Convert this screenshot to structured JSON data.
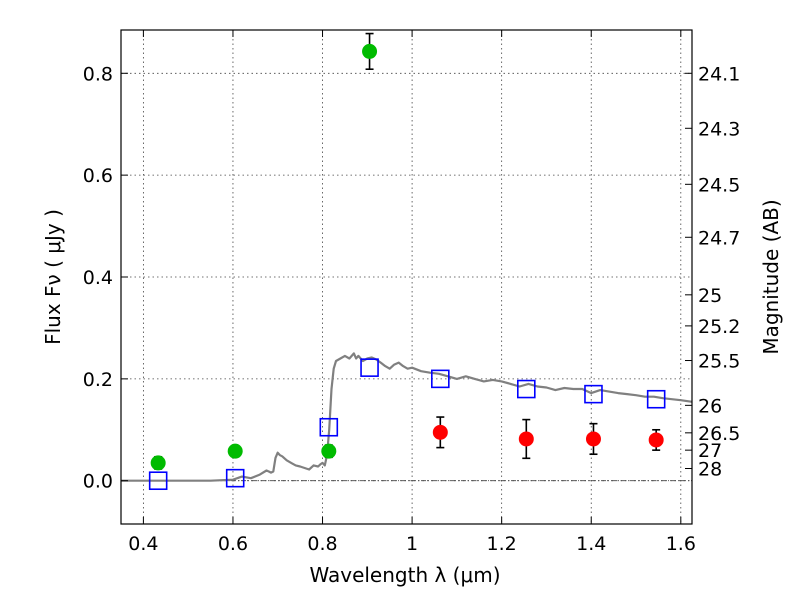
{
  "chart_data": {
    "type": "scatter",
    "xlabel": "Wavelength  λ (μm)",
    "ylabel": "Flux  Fν  ( μJy )",
    "ylabel_right": "Magnitude (AB)",
    "xlim": [
      0.35,
      1.625
    ],
    "ylim": [
      -0.085,
      0.885
    ],
    "grid": true,
    "x_ticks": [
      0.4,
      0.6,
      0.8,
      1.0,
      1.2,
      1.4,
      1.6
    ],
    "x_tick_labels": [
      "0.4",
      "0.6",
      "0.8",
      "1",
      "1.2",
      "1.4",
      "1.6"
    ],
    "y_ticks": [
      0.0,
      0.2,
      0.4,
      0.6,
      0.8
    ],
    "y_tick_labels": [
      "0.0",
      "0.2",
      "0.4",
      "0.6",
      "0.8"
    ],
    "right_ticks": [
      {
        "label": "24.1",
        "flux": 0.8
      },
      {
        "label": "24.3",
        "flux": 0.692
      },
      {
        "label": "24.5",
        "flux": 0.582
      },
      {
        "label": "24.7",
        "flux": 0.478
      },
      {
        "label": "25",
        "flux": 0.365
      },
      {
        "label": "25.2",
        "flux": 0.304
      },
      {
        "label": "25.5",
        "flux": 0.236
      },
      {
        "label": "26",
        "flux": 0.148
      },
      {
        "label": "26.5",
        "flux": 0.094
      },
      {
        "label": "27",
        "flux": 0.06
      },
      {
        "label": "28",
        "flux": 0.024
      }
    ],
    "series": [
      {
        "marker": "line",
        "color": "#808080",
        "x": [
          0.35,
          0.55,
          0.6,
          0.62,
          0.64,
          0.66,
          0.675,
          0.68,
          0.685,
          0.69,
          0.695,
          0.7,
          0.705,
          0.71,
          0.72,
          0.73,
          0.74,
          0.75,
          0.76,
          0.77,
          0.78,
          0.79,
          0.795,
          0.8,
          0.805,
          0.81,
          0.815,
          0.82,
          0.825,
          0.83,
          0.84,
          0.85,
          0.86,
          0.87,
          0.875,
          0.88,
          0.89,
          0.9,
          0.91,
          0.92,
          0.93,
          0.94,
          0.95,
          0.96,
          0.97,
          0.98,
          0.99,
          1.0,
          1.02,
          1.04,
          1.06,
          1.08,
          1.1,
          1.12,
          1.14,
          1.16,
          1.18,
          1.2,
          1.22,
          1.24,
          1.26,
          1.28,
          1.3,
          1.32,
          1.34,
          1.36,
          1.38,
          1.4,
          1.42,
          1.44,
          1.46,
          1.48,
          1.5,
          1.52,
          1.54,
          1.56,
          1.58,
          1.6,
          1.625
        ],
        "y": [
          0.0,
          0.0,
          0.002,
          0.008,
          0.005,
          0.012,
          0.02,
          0.018,
          0.016,
          0.018,
          0.045,
          0.055,
          0.05,
          0.048,
          0.04,
          0.035,
          0.03,
          0.028,
          0.025,
          0.022,
          0.03,
          0.028,
          0.032,
          0.035,
          0.03,
          0.05,
          0.1,
          0.18,
          0.22,
          0.235,
          0.24,
          0.245,
          0.24,
          0.25,
          0.24,
          0.245,
          0.235,
          0.24,
          0.242,
          0.238,
          0.232,
          0.225,
          0.22,
          0.228,
          0.232,
          0.225,
          0.22,
          0.222,
          0.215,
          0.212,
          0.21,
          0.205,
          0.2,
          0.205,
          0.2,
          0.195,
          0.198,
          0.195,
          0.19,
          0.185,
          0.19,
          0.185,
          0.183,
          0.178,
          0.182,
          0.18,
          0.18,
          0.172,
          0.178,
          0.175,
          0.172,
          0.17,
          0.168,
          0.165,
          0.165,
          0.162,
          0.16,
          0.158,
          0.155
        ]
      },
      {
        "marker": "square-open",
        "color": "#0000ff",
        "x": [
          0.433,
          0.605,
          0.814,
          0.905,
          1.063,
          1.255,
          1.405,
          1.545
        ],
        "y": [
          0.0,
          0.005,
          0.105,
          0.222,
          0.2,
          0.18,
          0.17,
          0.16
        ]
      },
      {
        "marker": "circle-filled",
        "color": "#00bb00",
        "x": [
          0.433,
          0.605,
          0.814,
          0.905
        ],
        "y": [
          0.035,
          0.058,
          0.058,
          0.843
        ],
        "err": [
          0.012,
          0.01,
          0.012,
          0.035
        ]
      },
      {
        "marker": "circle-filled",
        "color": "#ff0000",
        "x": [
          1.063,
          1.255,
          1.405,
          1.545
        ],
        "y": [
          0.095,
          0.082,
          0.082,
          0.08
        ],
        "err": [
          0.03,
          0.038,
          0.03,
          0.02
        ]
      }
    ]
  }
}
